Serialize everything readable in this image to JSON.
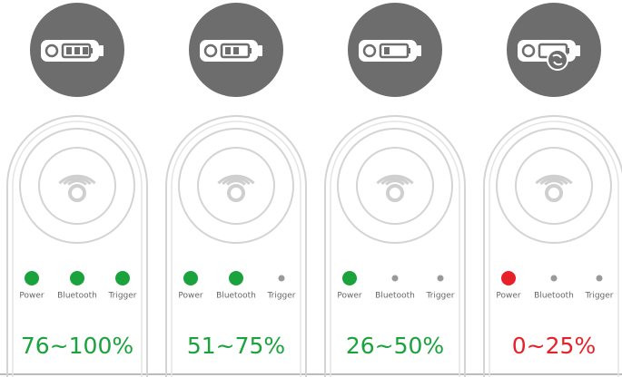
{
  "panels": [
    {
      "range": "76~100%",
      "color": "#1aa33c",
      "bars": 3,
      "charging": false,
      "indicators": [
        {
          "label": "Power",
          "on": true
        },
        {
          "label": "Bluetooth",
          "on": true
        },
        {
          "label": "Trigger",
          "on": true
        }
      ]
    },
    {
      "range": "51~75%",
      "color": "#1aa33c",
      "bars": 2,
      "charging": false,
      "indicators": [
        {
          "label": "Power",
          "on": true
        },
        {
          "label": "Bluetooth",
          "on": true
        },
        {
          "label": "Trigger",
          "on": false
        }
      ]
    },
    {
      "range": "26~50%",
      "color": "#1aa33c",
      "bars": 1,
      "charging": false,
      "indicators": [
        {
          "label": "Power",
          "on": true
        },
        {
          "label": "Bluetooth",
          "on": false
        },
        {
          "label": "Trigger",
          "on": false
        }
      ]
    },
    {
      "range": "0~25%",
      "color": "#e8202a",
      "bars": 0,
      "charging": true,
      "indicators": [
        {
          "label": "Power",
          "on": true
        },
        {
          "label": "Bluetooth",
          "on": false
        },
        {
          "label": "Trigger",
          "on": false
        }
      ]
    }
  ]
}
